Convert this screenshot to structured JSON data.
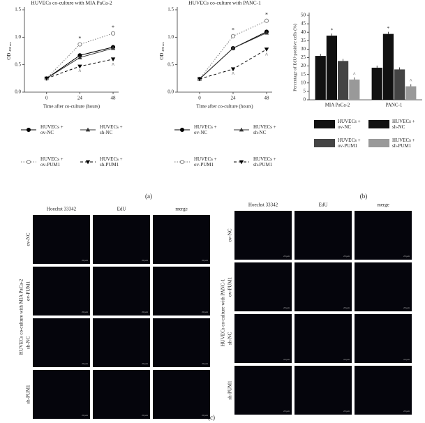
{
  "chart_data": [
    {
      "type": "line",
      "title": "HUVECs co-culture with MIA PaCa-2",
      "xlabel": "Time after co-culture (hours)",
      "ylabel": "OD",
      "ylabel_sub": "490 nm",
      "x": [
        0,
        24,
        48
      ],
      "xlim": [
        -16,
        52
      ],
      "xticks": [
        0,
        24,
        48
      ],
      "ylim": [
        0,
        1.5
      ],
      "yticks": [
        {
          "value": 0,
          "label": "0.0"
        },
        {
          "value": 0.5,
          "label": "0.5"
        },
        {
          "value": 1,
          "label": "1.0"
        },
        {
          "value": 1.5,
          "label": "1.5"
        }
      ],
      "series": [
        {
          "name": "HUVECs + ov-NC",
          "color": "#000000",
          "dash": "none",
          "marker": "circle",
          "values": [
            0.25,
            0.67,
            0.82
          ]
        },
        {
          "name": "HUVECs + sh-NC",
          "color": "#333333",
          "dash": "none",
          "marker": "triangle",
          "values": [
            0.25,
            0.63,
            0.8
          ]
        },
        {
          "name": "HUVECs + ov-PUM1",
          "color": "#777777",
          "dash": "1.5 2",
          "marker": "open-circle",
          "values": [
            0.25,
            0.87,
            1.07
          ]
        },
        {
          "name": "HUVECs + sh-PUM1",
          "color": "#000000",
          "dash": "4 3",
          "marker": "triangle-down",
          "values": [
            0.25,
            0.47,
            0.6
          ]
        }
      ],
      "annotations": [
        {
          "text": "*",
          "x": 24,
          "y": 0.97
        },
        {
          "text": "*",
          "x": 48,
          "y": 1.17
        },
        {
          "text": "^",
          "x": 24,
          "y": 0.37
        },
        {
          "text": "^",
          "x": 48,
          "y": 0.49
        }
      ]
    },
    {
      "type": "line",
      "title": "HUVECs co-culture with PANC-1",
      "xlabel": "Time after co-culture (hours)",
      "ylabel": "OD",
      "ylabel_sub": "490 nm",
      "x": [
        0,
        24,
        48
      ],
      "xlim": [
        -16,
        52
      ],
      "xticks": [
        0,
        24,
        48
      ],
      "ylim": [
        0,
        1.5
      ],
      "yticks": [
        {
          "value": 0,
          "label": "0.0"
        },
        {
          "value": 0.5,
          "label": "0.5"
        },
        {
          "value": 1,
          "label": "1.0"
        },
        {
          "value": 1.5,
          "label": "1.5"
        }
      ],
      "series": [
        {
          "name": "HUVECs + ov-NC",
          "color": "#000000",
          "dash": "none",
          "marker": "circle",
          "values": [
            0.24,
            0.8,
            1.1
          ]
        },
        {
          "name": "HUVECs + sh-NC",
          "color": "#333333",
          "dash": "none",
          "marker": "triangle",
          "values": [
            0.24,
            0.8,
            1.08
          ]
        },
        {
          "name": "HUVECs + ov-PUM1",
          "color": "#777777",
          "dash": "1.5 2",
          "marker": "open-circle",
          "values": [
            0.24,
            1.02,
            1.3
          ]
        },
        {
          "name": "HUVECs + sh-PUM1",
          "color": "#000000",
          "dash": "4 3",
          "marker": "triangle-down",
          "values": [
            0.24,
            0.42,
            0.78
          ]
        }
      ],
      "annotations": [
        {
          "text": "*",
          "x": 24,
          "y": 1.12
        },
        {
          "text": "*",
          "x": 48,
          "y": 1.4
        },
        {
          "text": "^",
          "x": 24,
          "y": 0.32
        },
        {
          "text": "^",
          "x": 48,
          "y": 0.67
        }
      ]
    },
    {
      "type": "bar",
      "ylabel": "Percentage of EdU-positive cells (%)",
      "categories": [
        "MIA PaCa-2",
        "PANC-1"
      ],
      "ylim": [
        0,
        50
      ],
      "yticks": [
        0,
        5,
        10,
        15,
        20,
        25,
        30,
        35,
        40,
        45,
        50
      ],
      "series": [
        {
          "name": "HUVECs + ov-NC",
          "color": "#111111",
          "values": [
            26,
            19
          ]
        },
        {
          "name": "HUVECs + sh-NC",
          "color": "#111111",
          "values": [
            38,
            39
          ],
          "annotation": "*"
        },
        {
          "name": "HUVECs + ov-PUM1",
          "color": "#444444",
          "values": [
            23,
            18
          ]
        },
        {
          "name": "HUVECs + sh-PUM1",
          "color": "#999999",
          "values": [
            12,
            8
          ],
          "annotation": "^"
        }
      ]
    }
  ],
  "panel_labels": [
    "(a)",
    "(b)",
    "(c)"
  ],
  "microscopy": [
    {
      "group_label": "HUVECs co-culture with MIA PaCa-2",
      "columns": [
        "Hoechst 33342",
        "EdU",
        "merge"
      ],
      "rows": [
        "ov-NC",
        "ov-PUM1",
        "sh-NC",
        "sh-PUM1"
      ],
      "scale_bar": "20 μm"
    },
    {
      "group_label": "HUVECs co-culture with PANC-1",
      "columns": [
        "Hoechst 33342",
        "EdU",
        "merge"
      ],
      "rows": [
        "ov-NC",
        "ov-PUM1",
        "sh-NC",
        "sh-PUM1"
      ],
      "scale_bar": "20 μm"
    }
  ]
}
